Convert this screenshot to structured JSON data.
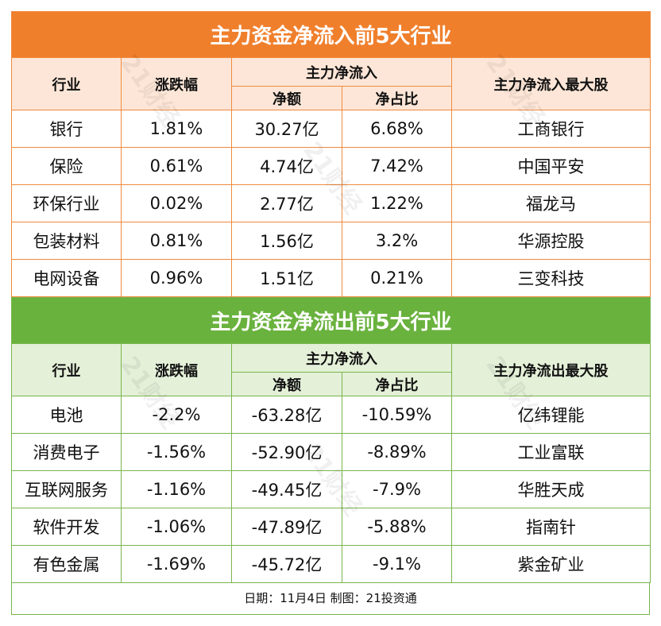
{
  "inflow": {
    "title": "主力资金净流入前5大行业",
    "headers": {
      "industry": "行业",
      "change": "涨跌幅",
      "group": "主力净流入",
      "net": "净额",
      "ratio": "净占比",
      "top_stock": "主力净流入最大股"
    },
    "rows": [
      {
        "industry": "银行",
        "change": "1.81%",
        "net": "30.27亿",
        "ratio": "6.68%",
        "stock": "工商银行"
      },
      {
        "industry": "保险",
        "change": "0.61%",
        "net": "4.74亿",
        "ratio": "7.42%",
        "stock": "中国平安"
      },
      {
        "industry": "环保行业",
        "change": "0.02%",
        "net": "2.77亿",
        "ratio": "1.22%",
        "stock": "福龙马"
      },
      {
        "industry": "包装材料",
        "change": "0.81%",
        "net": "1.56亿",
        "ratio": "3.2%",
        "stock": "华源控股"
      },
      {
        "industry": "电网设备",
        "change": "0.96%",
        "net": "1.51亿",
        "ratio": "0.21%",
        "stock": "三变科技"
      }
    ]
  },
  "outflow": {
    "title": "主力资金净流出前5大行业",
    "headers": {
      "industry": "行业",
      "change": "涨跌幅",
      "group": "主力净流入",
      "net": "净额",
      "ratio": "净占比",
      "top_stock": "主力净流出最大股"
    },
    "rows": [
      {
        "industry": "电池",
        "change": "-2.2%",
        "net": "-63.28亿",
        "ratio": "-10.59%",
        "stock": "亿纬锂能"
      },
      {
        "industry": "消费电子",
        "change": "-1.56%",
        "net": "-52.90亿",
        "ratio": "-8.89%",
        "stock": "工业富联"
      },
      {
        "industry": "互联网服务",
        "change": "-1.16%",
        "net": "-49.45亿",
        "ratio": "-7.9%",
        "stock": "华胜天成"
      },
      {
        "industry": "软件开发",
        "change": "-1.06%",
        "net": "-47.89亿",
        "ratio": "-5.88%",
        "stock": "指南针"
      },
      {
        "industry": "有色金属",
        "change": "-1.69%",
        "net": "-45.72亿",
        "ratio": "-9.1%",
        "stock": "紫金矿业"
      }
    ]
  },
  "footer": "日期：11月4日 制图：21投资通",
  "watermark": "21财经"
}
